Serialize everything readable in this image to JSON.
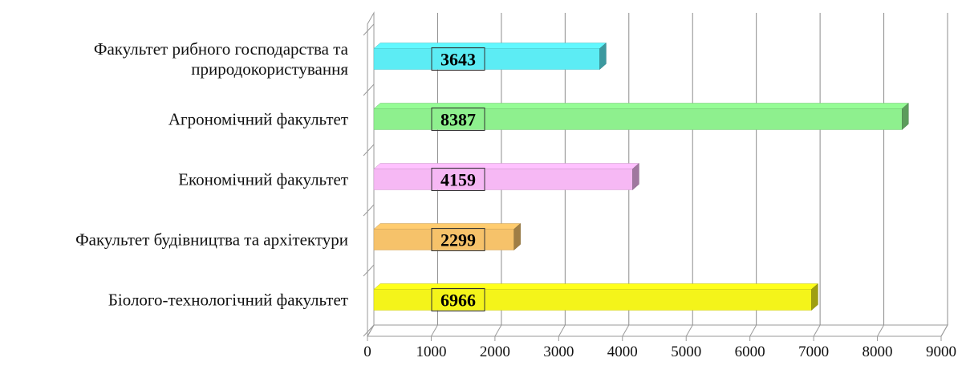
{
  "chart_data": {
    "type": "bar",
    "orientation": "horizontal",
    "style": "3d",
    "categories": [
      [
        "Факультет рибного господарства та",
        "природокористування"
      ],
      [
        "Агрономічний факультет"
      ],
      [
        "Економічний факультет"
      ],
      [
        "Факультет будівництва та архітектури"
      ],
      [
        "Біолого-технологічний факультет"
      ]
    ],
    "values": [
      3643,
      8387,
      4159,
      2299,
      6966
    ],
    "value_labels": [
      "3643",
      "8387",
      "4159",
      "2299",
      "6966"
    ],
    "colors": [
      "#5CECF4",
      "#8EF08E",
      "#F6B8F4",
      "#F6C26A",
      "#F4F41A"
    ],
    "xlim": [
      0,
      9000
    ],
    "xticks": [
      "0",
      "1000",
      "2000",
      "3000",
      "4000",
      "5000",
      "6000",
      "7000",
      "8000",
      "9000"
    ],
    "grid": true,
    "legend": "none"
  }
}
